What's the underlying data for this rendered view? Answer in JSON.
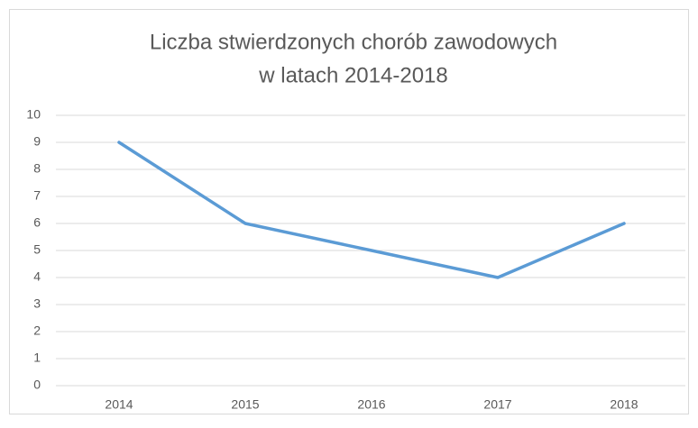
{
  "chart_data": {
    "type": "line",
    "title": [
      "Liczba stwierdzonych chorób zawodowych",
      "w latach 2014-2018"
    ],
    "categories": [
      "2014",
      "2015",
      "2016",
      "2017",
      "2018"
    ],
    "series": [
      {
        "color": "#5b9bd5",
        "values": [
          9,
          6,
          5,
          4,
          6
        ]
      }
    ],
    "ylim": [
      0,
      10
    ],
    "yticks": [
      0,
      1,
      2,
      3,
      4,
      5,
      6,
      7,
      8,
      9,
      10
    ],
    "grid": true
  }
}
